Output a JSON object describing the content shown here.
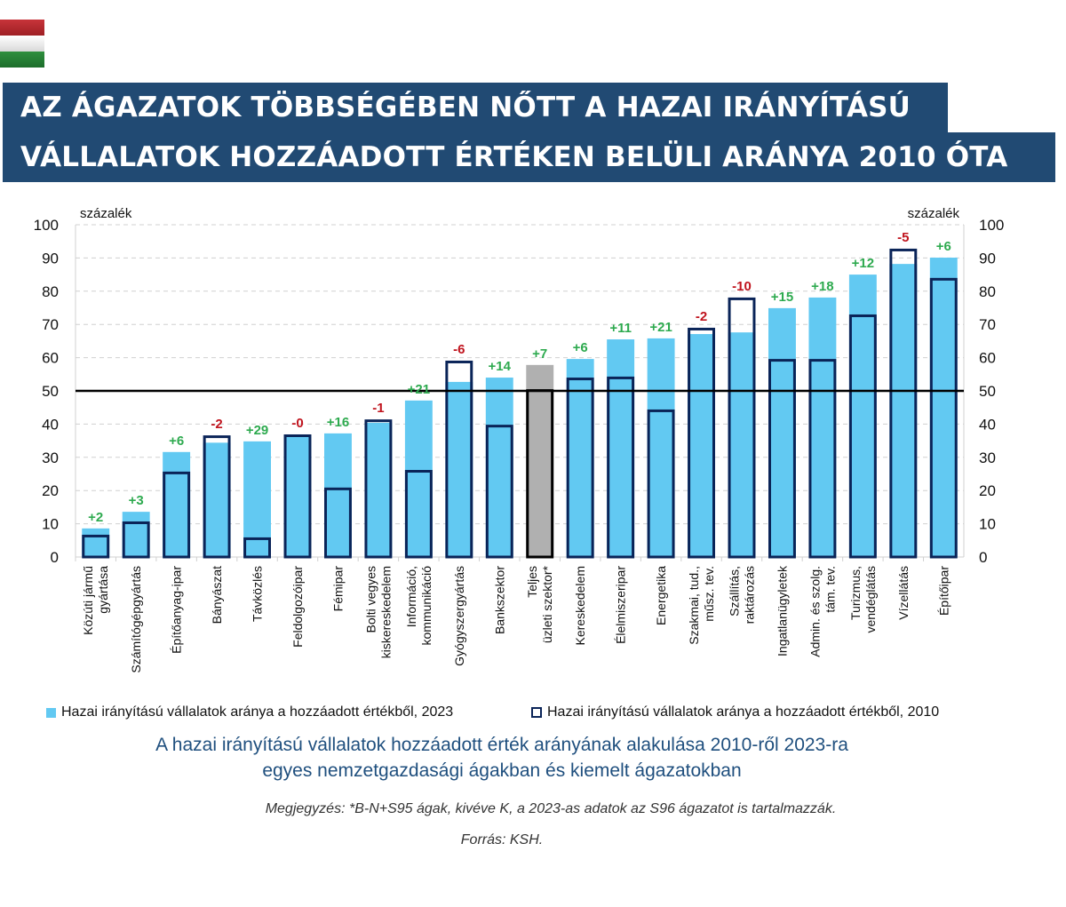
{
  "header": {
    "flag": "hungary-flag",
    "title_line1": "AZ ÁGAZATOK TÖBBSÉGÉBEN NŐTT A HAZAI IRÁNYÍTÁSÚ",
    "title_line2": "VÁLLALATOK HOZZÁADOTT ÉRTÉKEN BELÜLI ARÁNYA 2010 ÓTA"
  },
  "colors": {
    "title_bg": "#214a73",
    "bar_2023": "#62c9f2",
    "bar_2010_outline": "#0a2458",
    "total_bar": "#b0b0b0",
    "total_outline": "#000000",
    "positive_label": "#2eaa4f",
    "negative_label": "#c0141e",
    "reference_line": "#000000",
    "subtitle": "#1f4f7e"
  },
  "chart_data": {
    "type": "bar",
    "title": "A hazai irányítású vállalatok hozzáadott érték arányának alakulása 2010-ről 2023-ra egyes nemzetgazdasági ágakban és kiemelt ágazatokban",
    "ylabel_left": "százalék",
    "ylabel_right": "százalék",
    "ylim": [
      0,
      100
    ],
    "yticks": [
      0,
      10,
      20,
      30,
      40,
      50,
      60,
      70,
      80,
      90,
      100
    ],
    "grid": true,
    "reference_line": 50,
    "highlight_category": "Teljes üzleti szektor*",
    "categories": [
      [
        "Közúti jármű",
        "gyártása"
      ],
      [
        "Számítógépgyártás"
      ],
      [
        "Építőanyag-ipar"
      ],
      [
        "Bányászat"
      ],
      [
        "Távközlés"
      ],
      [
        "Feldolgozóipar"
      ],
      [
        "Fémipar"
      ],
      [
        "Bolti vegyes",
        "kiskereskedelem"
      ],
      [
        "Információ,",
        "kommunikáció"
      ],
      [
        "Gyógyszergyártás"
      ],
      [
        "Bankszektor"
      ],
      [
        "Teljes",
        "üzleti szektor*"
      ],
      [
        "Kereskedelem"
      ],
      [
        "Élelmiszeripar"
      ],
      [
        "Energetika"
      ],
      [
        "Szakmai, tud.,",
        "műsz. tev."
      ],
      [
        "Szállítás,",
        "raktározás"
      ],
      [
        "Ingatlanügyletek"
      ],
      [
        "Admin. és szolg.",
        "tám. tev."
      ],
      [
        "Turizmus,",
        "vendéglátás"
      ],
      [
        "Vízellátás"
      ],
      [
        "Építőipar"
      ]
    ],
    "series": [
      {
        "name": "Hazai irányítású vállalatok aránya a hozzáadott értékből, 2023",
        "style": "filled",
        "values": [
          8.6,
          13.6,
          31.6,
          34.4,
          34.8,
          36.8,
          37.2,
          40.4,
          47.1,
          52.7,
          54.0,
          57.8,
          59.6,
          65.5,
          65.8,
          67.1,
          67.6,
          74.9,
          78.1,
          85.0,
          88.2,
          90.1
        ]
      },
      {
        "name": "Hazai irányítású vállalatok aránya a hozzáadott értékből, 2010",
        "style": "outline",
        "values": [
          6.7,
          10.7,
          25.7,
          36.6,
          5.9,
          36.9,
          20.9,
          41.4,
          26.2,
          59.1,
          39.8,
          50.5,
          54.0,
          54.3,
          44.4,
          69.0,
          78.1,
          59.6,
          59.6,
          73.0,
          92.8,
          84.0
        ]
      }
    ],
    "change_labels": [
      "+2",
      "+3",
      "+6",
      "-2",
      "+29",
      "-0",
      "+16",
      "-1",
      "+21",
      "-6",
      "+14",
      "+7",
      "+6",
      "+11",
      "+21",
      "-2",
      "-10",
      "+15",
      "+18",
      "+12",
      "-5",
      "+6"
    ],
    "legend_position": "bottom"
  },
  "legend": {
    "item_2023": "Hazai irányítású vállalatok aránya a hozzáadott értékből, 2023",
    "item_2010": "Hazai irányítású vállalatok aránya a hozzáadott értékből, 2010"
  },
  "footer": {
    "subtitle_line1": "A hazai irányítású vállalatok hozzáadott érték arányának alakulása 2010-ről 2023-ra",
    "subtitle_line2": "egyes nemzetgazdasági ágakban és kiemelt ágazatokban",
    "note": "Megjegyzés: *B-N+S95 ágak, kivéve K, a 2023-as adatok az S96 ágazatot is tartalmazzák.",
    "source": "Forrás: KSH."
  }
}
